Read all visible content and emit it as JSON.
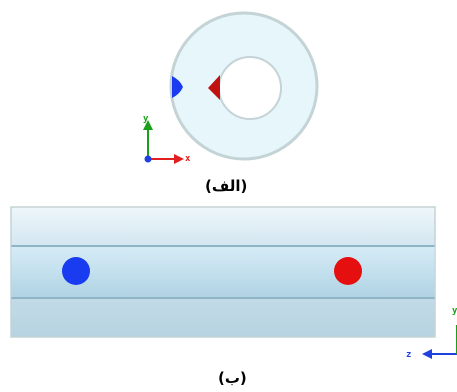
{
  "captions": {
    "top_view": "(الف)",
    "side_view": "(ب)"
  },
  "axes_top": {
    "x_label": "x",
    "y_label": "y"
  },
  "axes_side": {
    "z_label": "z",
    "y_label": "y"
  },
  "colors": {
    "ring_fill": "#e6f6fa",
    "ring_stroke": "#c4d3d6",
    "tube_light": "#d9ecf4",
    "tube_mid": "#b5d4e2",
    "marker_blue": "#1a3cf0",
    "marker_red": "#e60f0f",
    "axis_x": "#e02020",
    "axis_y": "#18a018",
    "axis_z": "#2040e0"
  }
}
